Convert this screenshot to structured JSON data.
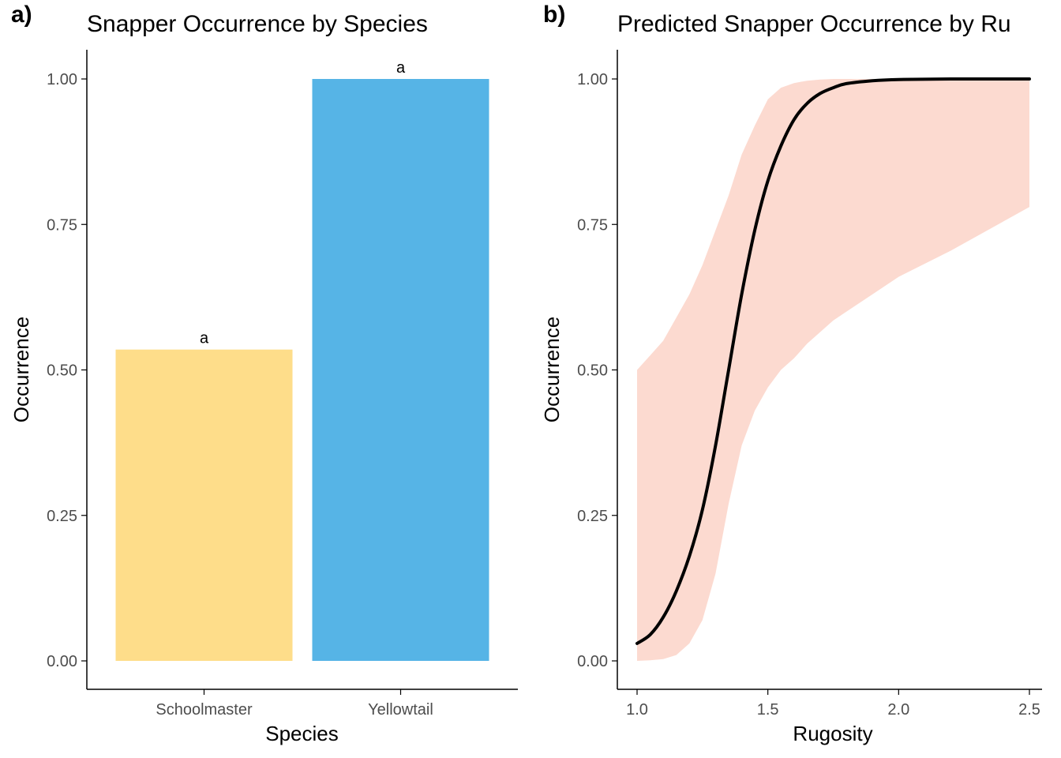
{
  "panel_tags": [
    "a)",
    "b)"
  ],
  "colors": {
    "schoolmaster": "#FEDD8A",
    "yellowtail": "#56B4E6",
    "ribbon": "#FCDAD0",
    "line": "#000000",
    "axis": "#000000"
  },
  "chart_data": [
    {
      "type": "bar",
      "title": "Snapper Occurrence by Species",
      "xlabel": "Species",
      "ylabel": "Occurrence",
      "categories": [
        "Schoolmaster",
        "Yellowtail"
      ],
      "values": [
        0.535,
        1.0
      ],
      "bar_labels": [
        "a",
        "a"
      ],
      "ylim": [
        0,
        1
      ],
      "yticks": [
        0,
        0.25,
        0.5,
        0.75,
        1.0
      ],
      "ytick_labels": [
        "0.00",
        "0.25",
        "0.50",
        "0.75",
        "1.00"
      ],
      "grid": false
    },
    {
      "type": "line",
      "title": "Predicted Snapper Occurrence by Ru",
      "xlabel": "Rugosity",
      "ylabel": "Occurrence",
      "xlim": [
        1.0,
        2.5
      ],
      "ylim": [
        0,
        1
      ],
      "xticks": [
        1.0,
        1.5,
        2.0,
        2.5
      ],
      "xtick_labels": [
        "1.0",
        "1.5",
        "2.0",
        "2.5"
      ],
      "yticks": [
        0,
        0.25,
        0.5,
        0.75,
        1.0
      ],
      "ytick_labels": [
        "0.00",
        "0.25",
        "0.50",
        "0.75",
        "1.00"
      ],
      "grid": false,
      "series": [
        {
          "x": [
            1.0,
            1.05,
            1.1,
            1.15,
            1.2,
            1.25,
            1.3,
            1.35,
            1.4,
            1.45,
            1.5,
            1.55,
            1.6,
            1.65,
            1.7,
            1.75,
            1.8,
            1.9,
            2.0,
            2.2,
            2.5
          ],
          "y": [
            0.03,
            0.045,
            0.075,
            0.12,
            0.18,
            0.26,
            0.37,
            0.5,
            0.63,
            0.74,
            0.825,
            0.885,
            0.93,
            0.958,
            0.975,
            0.985,
            0.992,
            0.997,
            0.999,
            1.0,
            1.0
          ],
          "lower": [
            0.0,
            0.001,
            0.003,
            0.01,
            0.03,
            0.07,
            0.15,
            0.27,
            0.37,
            0.43,
            0.47,
            0.5,
            0.52,
            0.545,
            0.565,
            0.585,
            0.6,
            0.63,
            0.66,
            0.705,
            0.78
          ],
          "upper": [
            0.5,
            0.525,
            0.55,
            0.59,
            0.63,
            0.68,
            0.74,
            0.8,
            0.87,
            0.92,
            0.965,
            0.985,
            0.993,
            0.997,
            0.999,
            1.0,
            1.0,
            1.0,
            1.0,
            1.0,
            1.0
          ]
        }
      ]
    }
  ]
}
